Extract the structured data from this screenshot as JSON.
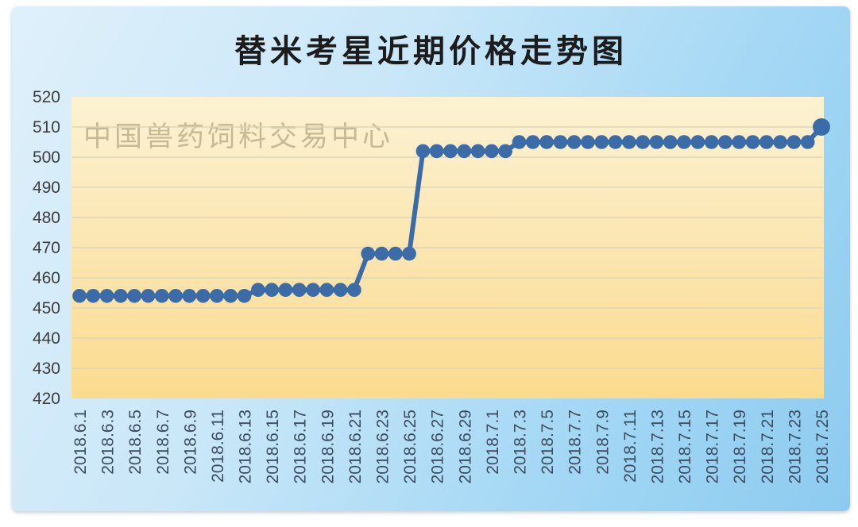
{
  "page": {
    "background": "#FFFFFF"
  },
  "card": {
    "bg_top_left": "#DFF0FB",
    "bg_bottom_right": "#8CCBEF"
  },
  "chart_data": {
    "type": "line",
    "title": "替米考星近期价格走势图",
    "watermark": "中国兽药饲料交易中心",
    "xlabel": "",
    "ylabel": "",
    "ylim": [
      420,
      520
    ],
    "yticks": [
      420,
      430,
      440,
      450,
      460,
      470,
      480,
      490,
      500,
      510,
      520
    ],
    "grid": "horizontal",
    "legend": "none",
    "line_color": "#3B6CA8",
    "marker": "circle",
    "plot_bg_top": "#FCF2D2",
    "plot_bg_bottom": "#FBDB8E",
    "gridline_color": "#DBD3BC",
    "y_tick_color": "#3d3d3d",
    "x_tick_color": "#3c4d60",
    "title_color": "#1c1c1c",
    "x_tick_labels": [
      "2018.6.1",
      "2018.6.3",
      "2018.6.5",
      "2018.6.7",
      "2018.6.9",
      "2018.6.11",
      "2018.6.13",
      "2018.6.15",
      "2018.6.17",
      "2018.6.19",
      "2018.6.21",
      "2018.6.23",
      "2018.6.25",
      "2018.6.27",
      "2018.6.29",
      "2018.7.1",
      "2018.7.3",
      "2018.7.5",
      "2018.7.7",
      "2018.7.9",
      "2018.7.11",
      "2018.7.13",
      "2018.7.15",
      "2018.7.17",
      "2018.7.19",
      "2018.7.21",
      "2018.7.23",
      "2018.7.25"
    ],
    "x": [
      "2018.6.1",
      "2018.6.2",
      "2018.6.3",
      "2018.6.4",
      "2018.6.5",
      "2018.6.6",
      "2018.6.7",
      "2018.6.8",
      "2018.6.9",
      "2018.6.10",
      "2018.6.11",
      "2018.6.12",
      "2018.6.13",
      "2018.6.14",
      "2018.6.15",
      "2018.6.16",
      "2018.6.17",
      "2018.6.18",
      "2018.6.19",
      "2018.6.20",
      "2018.6.21",
      "2018.6.22",
      "2018.6.23",
      "2018.6.24",
      "2018.6.25",
      "2018.6.26",
      "2018.6.27",
      "2018.6.28",
      "2018.6.29",
      "2018.6.30",
      "2018.7.1",
      "2018.7.2",
      "2018.7.3",
      "2018.7.4",
      "2018.7.5",
      "2018.7.6",
      "2018.7.7",
      "2018.7.8",
      "2018.7.9",
      "2018.7.10",
      "2018.7.11",
      "2018.7.12",
      "2018.7.13",
      "2018.7.14",
      "2018.7.15",
      "2018.7.16",
      "2018.7.17",
      "2018.7.18",
      "2018.7.19",
      "2018.7.20",
      "2018.7.21",
      "2018.7.22",
      "2018.7.23",
      "2018.7.24",
      "2018.7.25"
    ],
    "values": [
      454,
      454,
      454,
      454,
      454,
      454,
      454,
      454,
      454,
      454,
      454,
      454,
      454,
      456,
      456,
      456,
      456,
      456,
      456,
      456,
      456,
      468,
      468,
      468,
      468,
      502,
      502,
      502,
      502,
      502,
      502,
      502,
      505,
      505,
      505,
      505,
      505,
      505,
      505,
      505,
      505,
      505,
      505,
      505,
      505,
      505,
      505,
      505,
      505,
      505,
      505,
      505,
      505,
      505,
      510
    ]
  }
}
